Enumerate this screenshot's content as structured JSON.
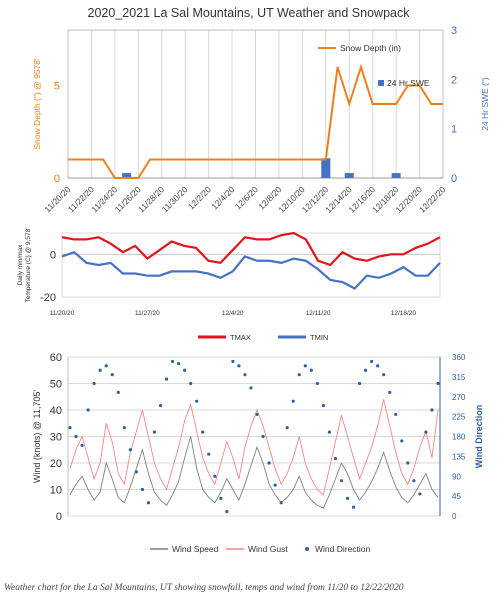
{
  "title": "2020_2021 La Sal Mountains, UT Weather and Snowpack",
  "caption": "Weather chart for the La Sal Mountains, UT showing snowfall, temps and wind from 11/20 to 12/22/2020",
  "colors": {
    "snow": "#f07f1a",
    "swe": "#4472c4",
    "tmax": "#e3141b",
    "tmin": "#4472c4",
    "wind_speed": "#7f7f7f",
    "wind_gust": "#f3878a",
    "wind_dir": "#2e5ea8",
    "grid": "#d9d9d9"
  },
  "chart_data": [
    {
      "type": "line",
      "title": "2020_2021 La Sal Mountains, UT Weather and Snowpack",
      "x": [
        "11/20/20",
        "11/21/20",
        "11/22/20",
        "11/23/20",
        "11/24/20",
        "11/25/20",
        "11/26/20",
        "11/27/20",
        "11/28/20",
        "11/29/20",
        "11/30/20",
        "12/1/20",
        "12/2/20",
        "12/3/20",
        "12/4/20",
        "12/5/20",
        "12/6/20",
        "12/7/20",
        "12/8/20",
        "12/9/20",
        "12/10/20",
        "12/11/20",
        "12/12/20",
        "12/13/20",
        "12/14/20",
        "12/15/20",
        "12/16/20",
        "12/17/20",
        "12/18/20",
        "12/19/20",
        "12/20/20",
        "12/21/20",
        "12/22/20"
      ],
      "xticks": [
        "11/20/20",
        "11/22/20",
        "11/24/20",
        "11/26/20",
        "11/28/20",
        "11/30/20",
        "12/2/20",
        "12/4/20",
        "12/6/20",
        "12/8/20",
        "12/10/20",
        "12/12/20",
        "12/14/20",
        "12/16/20",
        "12/18/20",
        "12/20/20",
        "12/22/20"
      ],
      "ylabel": "Snow Depth (\") @ 9578'",
      "y2label": "24 Hr SWE (\")",
      "ylim": [
        0,
        8
      ],
      "y2lim": [
        0,
        3
      ],
      "yticks": [
        0,
        5
      ],
      "y2ticks": [
        0,
        1,
        2,
        3
      ],
      "series": [
        {
          "name": "Snow Depth (in)",
          "axis": "left",
          "type": "line",
          "values": [
            1,
            1,
            1,
            1,
            0,
            0,
            0,
            1,
            1,
            1,
            1,
            1,
            1,
            1,
            1,
            1,
            1,
            1,
            1,
            1,
            1,
            1,
            1,
            6,
            4,
            6,
            4,
            4,
            4,
            5,
            5,
            4,
            4
          ]
        },
        {
          "name": "24 Hr SWE",
          "axis": "right",
          "type": "bar",
          "values": [
            0,
            0,
            0,
            0,
            0,
            0.1,
            0,
            0,
            0,
            0,
            0,
            0,
            0,
            0,
            0,
            0,
            0,
            0,
            0,
            0,
            0,
            0,
            0.4,
            0,
            0.1,
            0,
            0,
            0,
            0.1,
            0,
            0,
            0,
            0
          ]
        }
      ]
    },
    {
      "type": "line",
      "ylabel": "Daily min/max Temperature (C) @ 9,578'",
      "ylim": [
        -20,
        10
      ],
      "yticks": [
        -20,
        0
      ],
      "xticks": [
        "11/20/20",
        "11/27/20",
        "12/4/20",
        "12/11/20",
        "12/18/20"
      ],
      "legend": "bottom",
      "series": [
        {
          "name": "TMAX",
          "values": [
            8,
            7,
            7,
            8,
            5,
            1,
            4,
            -2,
            2,
            6,
            4,
            3,
            -3,
            -4,
            2,
            8,
            7,
            7,
            9,
            10,
            7,
            -3,
            -5,
            1,
            -2,
            -3,
            -1,
            0,
            0,
            3,
            5,
            8
          ]
        },
        {
          "name": "TMIN",
          "values": [
            -1,
            1,
            -4,
            -5,
            -4,
            -9,
            -9,
            -10,
            -10,
            -8,
            -8,
            -8,
            -9,
            -11,
            -8,
            -1,
            -3,
            -3,
            -4,
            -2,
            -3,
            -7,
            -12,
            -13,
            -16,
            -10,
            -11,
            -9,
            -6,
            -10,
            -10,
            -4
          ]
        }
      ]
    },
    {
      "type": "line",
      "ylabel": "Wind (knots) @ 11,705'",
      "y2label": "Wind Direction",
      "ylim": [
        0,
        60
      ],
      "yticks": [
        0,
        10,
        20,
        30,
        40,
        50,
        60
      ],
      "y2lim": [
        0,
        360
      ],
      "y2ticks": [
        0,
        45,
        90,
        135,
        180,
        225,
        270,
        315,
        360
      ],
      "legend": "bottom",
      "series": [
        {
          "name": "Wind Speed",
          "axis": "left",
          "type": "line",
          "values": [
            8,
            12,
            15,
            10,
            6,
            9,
            20,
            14,
            7,
            5,
            11,
            18,
            25,
            16,
            9,
            6,
            4,
            8,
            13,
            22,
            30,
            18,
            10,
            7,
            5,
            9,
            14,
            10,
            6,
            12,
            19,
            26,
            20,
            12,
            8,
            5,
            7,
            10,
            15,
            9,
            6,
            4,
            3,
            8,
            14,
            20,
            16,
            10,
            6,
            9,
            13,
            18,
            24,
            17,
            11,
            7,
            5,
            8,
            12,
            16,
            10,
            7
          ]
        },
        {
          "name": "Wind Gust",
          "axis": "left",
          "type": "line",
          "values": [
            18,
            25,
            30,
            22,
            14,
            20,
            35,
            28,
            16,
            12,
            24,
            32,
            40,
            30,
            20,
            14,
            10,
            18,
            26,
            36,
            42,
            32,
            22,
            16,
            12,
            20,
            28,
            22,
            14,
            26,
            34,
            40,
            34,
            26,
            18,
            12,
            16,
            22,
            30,
            20,
            14,
            10,
            8,
            18,
            28,
            38,
            30,
            22,
            14,
            20,
            26,
            34,
            44,
            34,
            24,
            16,
            12,
            18,
            26,
            32,
            22,
            40
          ]
        },
        {
          "name": "Wind Direction",
          "axis": "right",
          "type": "scatter",
          "values": [
            200,
            180,
            160,
            240,
            300,
            330,
            340,
            320,
            280,
            200,
            150,
            100,
            60,
            30,
            190,
            250,
            310,
            350,
            345,
            330,
            300,
            260,
            190,
            140,
            90,
            40,
            10,
            350,
            340,
            320,
            290,
            230,
            180,
            120,
            70,
            30,
            200,
            260,
            320,
            340,
            330,
            300,
            250,
            190,
            130,
            80,
            40,
            20,
            300,
            330,
            350,
            340,
            320,
            280,
            230,
            170,
            120,
            80,
            50,
            190,
            240,
            300
          ]
        }
      ]
    }
  ]
}
